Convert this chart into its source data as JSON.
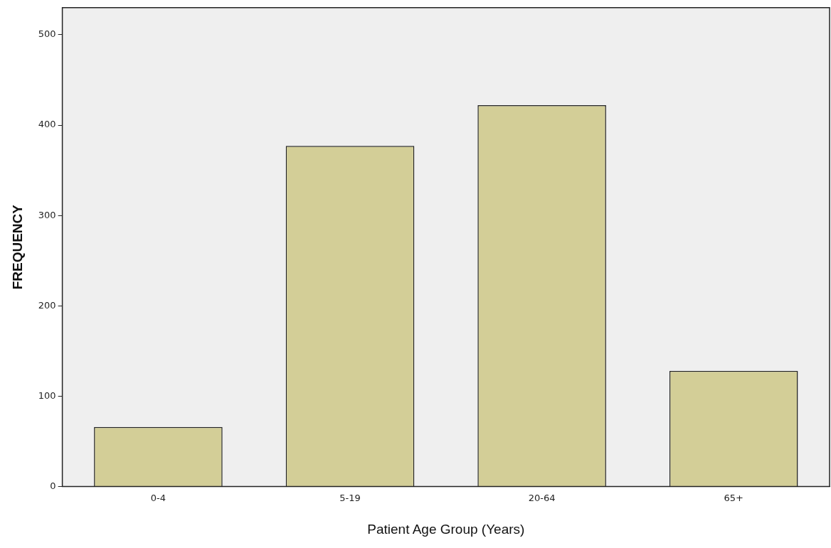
{
  "chart_data": {
    "type": "bar",
    "xlabel": "Patient Age Group (Years)",
    "ylabel": "FREQUENCY",
    "categories": [
      "0-4",
      "5-19",
      "20-64",
      "65+"
    ],
    "values": [
      66,
      377,
      422,
      128
    ],
    "color": "#d3ce97",
    "ylim": [
      0,
      530
    ],
    "yticks": [
      0,
      100,
      200,
      300,
      400,
      500
    ],
    "grid": false,
    "legend": false
  }
}
